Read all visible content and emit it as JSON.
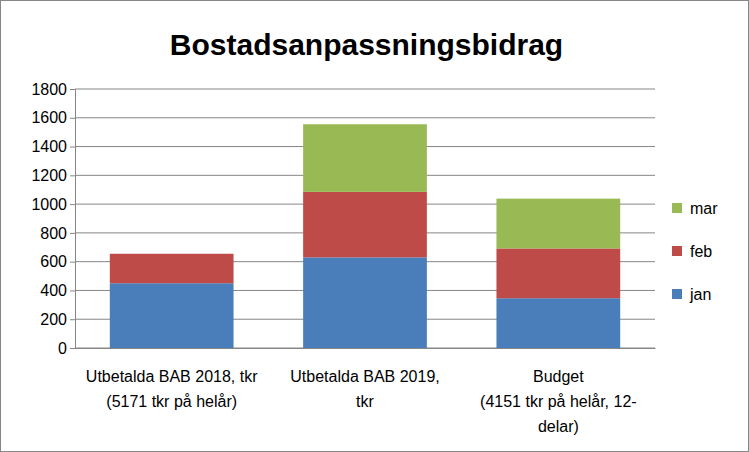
{
  "chart_data": {
    "type": "bar",
    "title": "Bostadsanpassningsbidrag",
    "categories": [
      "Utbetalda BAB 2018, tkr\n(5171 tkr på helår)",
      "Utbetalda BAB 2019,\ntkr",
      "Budget\n(4151 tkr på helår, 12-\ndelar)"
    ],
    "series": [
      {
        "name": "jan",
        "color": "#4a7ebb",
        "values": [
          450,
          630,
          346
        ]
      },
      {
        "name": "feb",
        "color": "#be4b48",
        "values": [
          205,
          455,
          346
        ]
      },
      {
        "name": "mar",
        "color": "#98b954",
        "values": [
          null,
          470,
          346
        ]
      }
    ],
    "stacked": true,
    "ylim": [
      0,
      1800
    ],
    "yticks": [
      0,
      200,
      400,
      600,
      800,
      1000,
      1200,
      1400,
      1600,
      1800
    ],
    "grid": true,
    "legend": "right"
  }
}
